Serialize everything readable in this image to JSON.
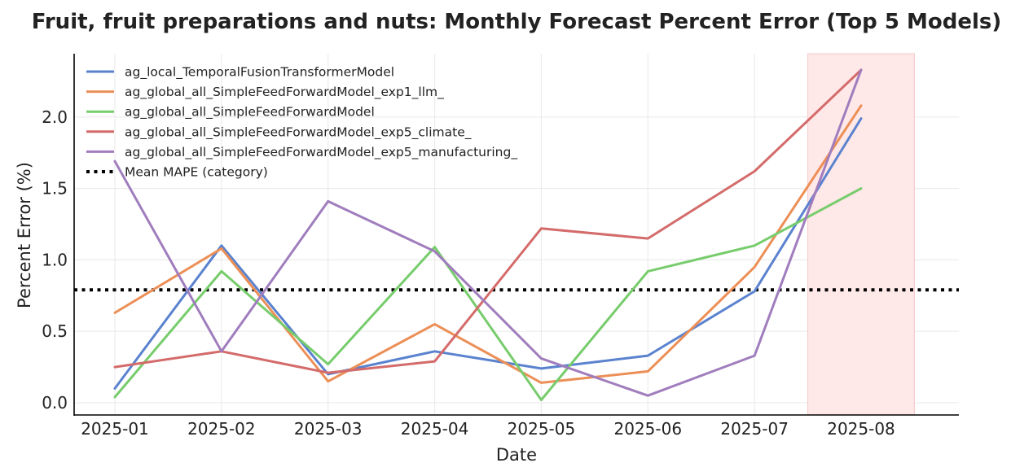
{
  "chart_data": {
    "type": "line",
    "title": "Fruit, fruit preparations and nuts: Monthly Forecast Percent Error (Top 5 Models)",
    "xlabel": "Date",
    "ylabel": "Percent Error (%)",
    "categories": [
      "2025-01",
      "2025-02",
      "2025-03",
      "2025-04",
      "2025-05",
      "2025-06",
      "2025-07",
      "2025-08"
    ],
    "yticks": [
      "0.0",
      "0.5",
      "1.0",
      "1.5",
      "2.0"
    ],
    "ylim": [
      -0.09,
      2.43
    ],
    "grid": true,
    "legend_position": "top-left",
    "series": [
      {
        "name": "ag_local_TemporalFusionTransformerModel",
        "color": "#5a82cf",
        "values": [
          0.1,
          1.1,
          0.2,
          0.36,
          0.24,
          0.33,
          0.78,
          1.99
        ]
      },
      {
        "name": "ag_global_all_SimpleFeedForwardModel_exp1_llm_",
        "color": "#ec8f57",
        "values": [
          0.63,
          1.08,
          0.15,
          0.55,
          0.14,
          0.22,
          0.95,
          2.08
        ]
      },
      {
        "name": "ag_global_all_SimpleFeedForwardModel",
        "color": "#77cc6c",
        "values": [
          0.04,
          0.92,
          0.27,
          1.09,
          0.02,
          0.92,
          1.1,
          1.5
        ]
      },
      {
        "name": "ag_global_all_SimpleFeedForwardModel_exp5_climate_",
        "color": "#d46b6b",
        "values": [
          0.25,
          0.36,
          0.21,
          0.29,
          1.22,
          1.15,
          1.62,
          2.33
        ]
      },
      {
        "name": "ag_global_all_SimpleFeedForwardModel_exp5_manufacturing_",
        "color": "#a07dbd",
        "values": [
          1.69,
          0.36,
          1.41,
          1.06,
          0.31,
          0.05,
          0.33,
          2.33
        ]
      }
    ],
    "reference_line": {
      "name": "Mean MAPE (category)",
      "value": 0.79,
      "color": "#000000",
      "style": "dotted"
    },
    "highlight_region": {
      "from": "2025-08",
      "color": "#ffe8e8",
      "edge": "#f6c8c8"
    }
  }
}
